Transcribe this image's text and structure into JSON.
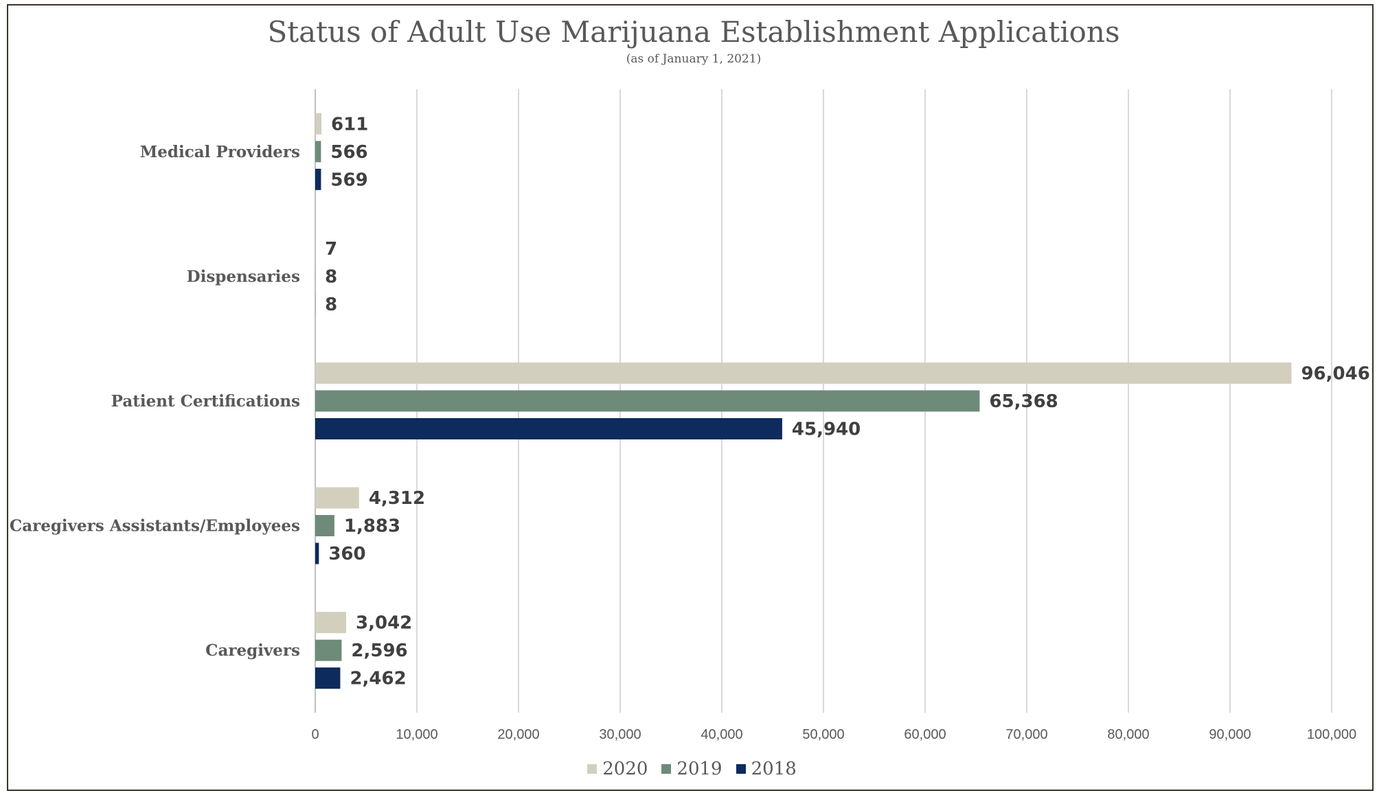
{
  "chart_data": {
    "type": "bar",
    "orientation": "horizontal",
    "title": "Status of Adult Use Marijuana Establishment Applications",
    "subtitle": "(as of January 1, 2021)",
    "categories": [
      "Medical Providers",
      "Dispensaries",
      "Patient Certifications",
      "Caregivers Assistants/Employees",
      "Caregivers"
    ],
    "series": [
      {
        "name": "2020",
        "color": "#d3cfbe",
        "values": [
          611,
          7,
          96046,
          4312,
          3042
        ],
        "labels": [
          "611",
          "7",
          "96,046",
          "4,312",
          "3,042"
        ]
      },
      {
        "name": "2019",
        "color": "#6e8a78",
        "values": [
          566,
          8,
          65368,
          1883,
          2596
        ],
        "labels": [
          "566",
          "8",
          "65,368",
          "1,883",
          "2,596"
        ]
      },
      {
        "name": "2018",
        "color": "#0d2b5c",
        "values": [
          569,
          8,
          45940,
          360,
          2462
        ],
        "labels": [
          "569",
          "8",
          "45,940",
          "360",
          "2,462"
        ]
      }
    ],
    "xlim": [
      0,
      100000
    ],
    "xticks": [
      0,
      10000,
      20000,
      30000,
      40000,
      50000,
      60000,
      70000,
      80000,
      90000,
      100000
    ],
    "xtick_labels": [
      "0",
      "10,000",
      "20,000",
      "30,000",
      "40,000",
      "50,000",
      "60,000",
      "70,000",
      "80,000",
      "90,000",
      "100,000"
    ],
    "grid": "vertical",
    "legend_position": "bottom"
  }
}
